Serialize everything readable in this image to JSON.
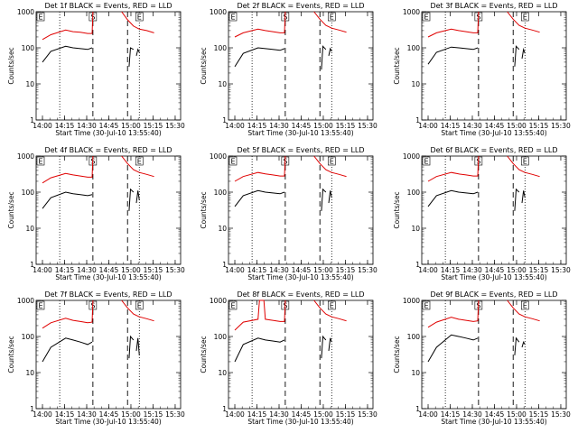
{
  "page": {
    "ylabel": "Counts/sec",
    "xlabel": "Start Time (30-Jul-10 13:55:40)",
    "marker_e_left": "E",
    "marker_s": "S",
    "marker_e_right": "E",
    "colors": {
      "events": "#000000",
      "lld": "#e00000",
      "axes": "#000000"
    }
  },
  "chart_data": [
    {
      "type": "line",
      "title": "Det 1f BLACK = Events, RED = LLD",
      "xticks": [
        "14:00",
        "14:15",
        "14:30",
        "14:45",
        "15:00",
        "15:15",
        "15:30"
      ],
      "xlim_min": [
        0,
        98
      ],
      "ylim": [
        1,
        1000
      ],
      "log_y": true,
      "yticks": [
        "1",
        "10",
        "100",
        "1000"
      ],
      "events": {
        "seg1_x": [
          4.3,
          10,
          20,
          25,
          30,
          35,
          38
        ],
        "seg1_y": [
          40,
          80,
          110,
          100,
          95,
          90,
          100
        ],
        "seg2_x": [
          63,
          64,
          66
        ],
        "seg2_y": [
          30,
          100,
          90
        ],
        "seg3_x": [
          68,
          69,
          70
        ],
        "seg3_y": [
          60,
          90,
          75
        ]
      },
      "lld": {
        "seg1_x": [
          4.3,
          10,
          20,
          25,
          30,
          35,
          38,
          38.5
        ],
        "seg1_y": [
          170,
          230,
          310,
          280,
          270,
          250,
          250,
          1000
        ],
        "seg2_x": [
          58,
          62,
          66,
          70,
          75,
          80
        ],
        "seg2_y": [
          1000,
          600,
          400,
          330,
          300,
          260
        ]
      },
      "vlines_dotted": [
        16,
        70
      ],
      "vlines_dashed": [
        38.5,
        62
      ]
    },
    {
      "type": "line",
      "title": "Det 2f BLACK = Events, RED = LLD",
      "xticks": [
        "14:00",
        "14:15",
        "14:30",
        "14:45",
        "15:00",
        "15:15",
        "15:30"
      ],
      "xlim_min": [
        0,
        98
      ],
      "ylim": [
        1,
        1000
      ],
      "log_y": true,
      "yticks": [
        "1",
        "10",
        "100",
        "1000"
      ],
      "events": {
        "seg1_x": [
          4.3,
          10,
          20,
          25,
          30,
          35,
          38
        ],
        "seg1_y": [
          30,
          70,
          100,
          95,
          90,
          85,
          95
        ],
        "seg2_x": [
          63,
          64,
          66
        ],
        "seg2_y": [
          25,
          110,
          90
        ],
        "seg3_x": [
          68,
          69,
          70
        ],
        "seg3_y": [
          60,
          95,
          80
        ]
      },
      "lld": {
        "seg1_x": [
          4.3,
          10,
          20,
          25,
          30,
          35,
          38,
          38.5
        ],
        "seg1_y": [
          200,
          260,
          330,
          300,
          280,
          260,
          260,
          1000
        ],
        "seg2_x": [
          58,
          62,
          66,
          70,
          75,
          80
        ],
        "seg2_y": [
          1000,
          620,
          420,
          350,
          310,
          270
        ]
      },
      "vlines_dotted": [
        16,
        70
      ],
      "vlines_dashed": [
        38.5,
        62
      ]
    },
    {
      "type": "line",
      "title": "Det 3f BLACK = Events, RED = LLD",
      "xticks": [
        "14:00",
        "14:15",
        "14:30",
        "14:45",
        "15:00",
        "15:15",
        "15:30"
      ],
      "xlim_min": [
        0,
        98
      ],
      "ylim": [
        1,
        1000
      ],
      "log_y": true,
      "yticks": [
        "1",
        "10",
        "100",
        "1000"
      ],
      "events": {
        "seg1_x": [
          4.3,
          10,
          20,
          25,
          30,
          35,
          38
        ],
        "seg1_y": [
          35,
          75,
          105,
          100,
          95,
          90,
          100
        ],
        "seg2_x": [
          63,
          64,
          66
        ],
        "seg2_y": [
          30,
          110,
          90
        ],
        "seg3_x": [
          68,
          69,
          70
        ],
        "seg3_y": [
          50,
          90,
          70
        ]
      },
      "lld": {
        "seg1_x": [
          4.3,
          10,
          20,
          25,
          30,
          35,
          38,
          38.5
        ],
        "seg1_y": [
          200,
          260,
          330,
          300,
          280,
          260,
          260,
          1000
        ],
        "seg2_x": [
          58,
          62,
          66,
          70,
          75,
          80
        ],
        "seg2_y": [
          1000,
          620,
          420,
          350,
          310,
          270
        ]
      },
      "vlines_dotted": [
        16,
        70
      ],
      "vlines_dashed": [
        38.5,
        62
      ]
    },
    {
      "type": "line",
      "title": "Det 4f BLACK = Events, RED = LLD",
      "xticks": [
        "14:00",
        "14:15",
        "14:30",
        "14:45",
        "15:00",
        "15:15",
        "15:30"
      ],
      "xlim_min": [
        0,
        98
      ],
      "ylim": [
        1,
        1000
      ],
      "log_y": true,
      "yticks": [
        "1",
        "10",
        "100",
        "1000"
      ],
      "events": {
        "seg1_x": [
          4.3,
          10,
          20,
          25,
          30,
          35,
          38
        ],
        "seg1_y": [
          35,
          70,
          100,
          90,
          85,
          80,
          85
        ],
        "seg2_x": [
          63,
          64,
          66
        ],
        "seg2_y": [
          30,
          120,
          100
        ],
        "seg3_x": [
          68,
          69,
          70
        ],
        "seg3_y": [
          50,
          110,
          60
        ]
      },
      "lld": {
        "seg1_x": [
          4.3,
          10,
          20,
          25,
          30,
          35,
          38,
          38.5
        ],
        "seg1_y": [
          180,
          250,
          330,
          300,
          280,
          260,
          260,
          1000
        ],
        "seg2_x": [
          58,
          62,
          66,
          70,
          75,
          80
        ],
        "seg2_y": [
          1000,
          620,
          420,
          350,
          310,
          270
        ]
      },
      "vlines_dotted": [
        16,
        70
      ],
      "vlines_dashed": [
        38.5,
        62
      ]
    },
    {
      "type": "line",
      "title": "Det 5f BLACK = Events, RED = LLD",
      "xticks": [
        "14:00",
        "14:15",
        "14:30",
        "14:45",
        "15:00",
        "15:15",
        "15:30"
      ],
      "xlim_min": [
        0,
        98
      ],
      "ylim": [
        1,
        1000
      ],
      "log_y": true,
      "yticks": [
        "1",
        "10",
        "100",
        "1000"
      ],
      "events": {
        "seg1_x": [
          4.3,
          10,
          20,
          25,
          30,
          35,
          38
        ],
        "seg1_y": [
          40,
          80,
          110,
          100,
          95,
          90,
          100
        ],
        "seg2_x": [
          63,
          64,
          66
        ],
        "seg2_y": [
          30,
          120,
          100
        ],
        "seg3_x": [
          68,
          69,
          70
        ],
        "seg3_y": [
          50,
          110,
          70
        ]
      },
      "lld": {
        "seg1_x": [
          4.3,
          10,
          20,
          25,
          30,
          35,
          38,
          38.5
        ],
        "seg1_y": [
          200,
          270,
          350,
          320,
          300,
          280,
          280,
          1000
        ],
        "seg2_x": [
          58,
          62,
          66,
          70,
          75,
          80
        ],
        "seg2_y": [
          1000,
          620,
          420,
          350,
          310,
          270
        ]
      },
      "vlines_dotted": [
        16,
        70
      ],
      "vlines_dashed": [
        38.5,
        62
      ]
    },
    {
      "type": "line",
      "title": "Det 6f BLACK = Events, RED = LLD",
      "xticks": [
        "14:00",
        "14:15",
        "14:30",
        "14:45",
        "15:00",
        "15:15",
        "15:30"
      ],
      "xlim_min": [
        0,
        98
      ],
      "ylim": [
        1,
        1000
      ],
      "log_y": true,
      "yticks": [
        "1",
        "10",
        "100",
        "1000"
      ],
      "events": {
        "seg1_x": [
          4.3,
          10,
          20,
          25,
          30,
          35,
          38
        ],
        "seg1_y": [
          40,
          80,
          110,
          100,
          95,
          90,
          100
        ],
        "seg2_x": [
          63,
          64,
          66
        ],
        "seg2_y": [
          30,
          120,
          100
        ],
        "seg3_x": [
          68,
          69,
          70
        ],
        "seg3_y": [
          50,
          110,
          70
        ]
      },
      "lld": {
        "seg1_x": [
          4.3,
          10,
          20,
          25,
          30,
          35,
          38,
          38.5
        ],
        "seg1_y": [
          200,
          270,
          350,
          320,
          300,
          280,
          280,
          1000
        ],
        "seg2_x": [
          58,
          62,
          66,
          70,
          75,
          80
        ],
        "seg2_y": [
          1000,
          620,
          420,
          350,
          310,
          270
        ]
      },
      "vlines_dotted": [
        16,
        70
      ],
      "vlines_dashed": [
        38.5,
        62
      ]
    },
    {
      "type": "line",
      "title": "Det 7f BLACK = Events, RED = LLD",
      "xticks": [
        "14:00",
        "14:15",
        "14:30",
        "14:45",
        "15:00",
        "15:15",
        "15:30"
      ],
      "xlim_min": [
        0,
        98
      ],
      "ylim": [
        1,
        1000
      ],
      "log_y": true,
      "yticks": [
        "1",
        "10",
        "100",
        "1000"
      ],
      "events": {
        "seg1_x": [
          4.3,
          10,
          20,
          25,
          30,
          35,
          38
        ],
        "seg1_y": [
          20,
          50,
          90,
          80,
          70,
          60,
          70
        ],
        "seg2_x": [
          63,
          64,
          66
        ],
        "seg2_y": [
          25,
          100,
          80
        ],
        "seg3_x": [
          68,
          69,
          70
        ],
        "seg3_y": [
          40,
          90,
          30
        ]
      },
      "lld": {
        "seg1_x": [
          4.3,
          10,
          20,
          25,
          30,
          35,
          38,
          38.5
        ],
        "seg1_y": [
          170,
          240,
          320,
          280,
          260,
          240,
          250,
          1000
        ],
        "seg2_x": [
          58,
          62,
          66,
          70,
          75,
          80
        ],
        "seg2_y": [
          1000,
          620,
          420,
          350,
          310,
          270
        ]
      },
      "vlines_dotted": [
        16,
        70
      ],
      "vlines_dashed": [
        38.5,
        62
      ]
    },
    {
      "type": "line",
      "title": "Det 8f BLACK = Events, RED = LLD",
      "xticks": [
        "14:00",
        "14:15",
        "14:30",
        "14:45",
        "15:00",
        "15:15",
        "15:30"
      ],
      "xlim_min": [
        0,
        98
      ],
      "ylim": [
        1,
        1000
      ],
      "log_y": true,
      "yticks": [
        "1",
        "10",
        "100",
        "1000"
      ],
      "events": {
        "seg1_x": [
          4.3,
          10,
          20,
          25,
          30,
          35,
          38
        ],
        "seg1_y": [
          20,
          60,
          90,
          80,
          75,
          70,
          80
        ],
        "seg2_x": [
          63,
          64,
          66
        ],
        "seg2_y": [
          25,
          100,
          80
        ],
        "seg3_x": [
          68,
          69,
          70
        ],
        "seg3_y": [
          40,
          90,
          70
        ]
      },
      "lld": {
        "seg1_x": [
          4.3,
          10,
          20,
          21,
          24,
          25,
          30,
          35,
          38,
          38.5
        ],
        "seg1_y": [
          150,
          250,
          300,
          1000,
          1000,
          300,
          280,
          260,
          260,
          1000
        ],
        "seg2_x": [
          58,
          62,
          66,
          70,
          75,
          80
        ],
        "seg2_y": [
          1000,
          620,
          420,
          350,
          310,
          270
        ]
      },
      "vlines_dotted": [
        16,
        70
      ],
      "vlines_dashed": [
        38.5,
        62
      ]
    },
    {
      "type": "line",
      "title": "Det 9f BLACK = Events, RED = LLD",
      "xticks": [
        "14:00",
        "14:15",
        "14:30",
        "14:45",
        "15:00",
        "15:15",
        "15:30"
      ],
      "xlim_min": [
        0,
        98
      ],
      "ylim": [
        1,
        1000
      ],
      "log_y": true,
      "yticks": [
        "1",
        "10",
        "100",
        "1000"
      ],
      "events": {
        "seg1_x": [
          4.3,
          10,
          20,
          25,
          30,
          35,
          38
        ],
        "seg1_y": [
          20,
          50,
          110,
          100,
          90,
          80,
          90
        ],
        "seg2_x": [
          63,
          64,
          66
        ],
        "seg2_y": [
          30,
          90,
          70
        ],
        "seg3_x": [
          68,
          69,
          70
        ],
        "seg3_y": [
          50,
          70,
          60
        ]
      },
      "lld": {
        "seg1_x": [
          4.3,
          10,
          20,
          25,
          30,
          35,
          38,
          38.5
        ],
        "seg1_y": [
          180,
          250,
          340,
          300,
          280,
          260,
          270,
          1000
        ],
        "seg2_x": [
          58,
          62,
          66,
          70,
          75,
          80
        ],
        "seg2_y": [
          1000,
          620,
          420,
          350,
          310,
          270
        ]
      },
      "vlines_dotted": [
        16,
        70
      ],
      "vlines_dashed": [
        38.5,
        62
      ]
    }
  ]
}
